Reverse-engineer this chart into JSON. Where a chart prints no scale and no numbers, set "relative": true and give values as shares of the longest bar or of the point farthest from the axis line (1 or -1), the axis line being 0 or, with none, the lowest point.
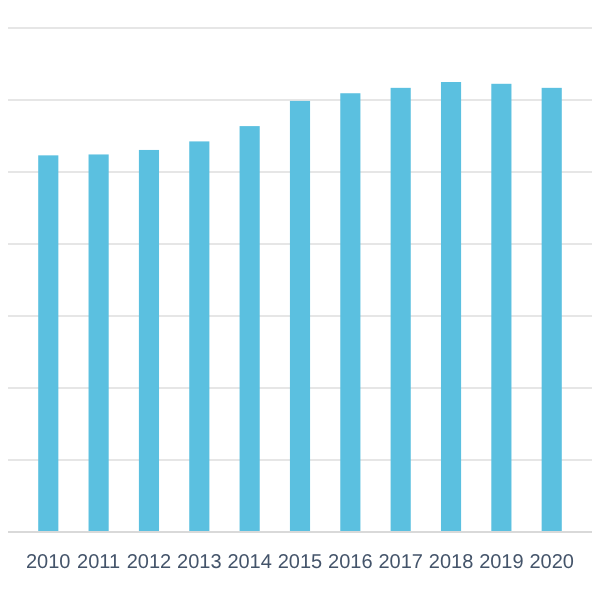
{
  "chart_data": {
    "type": "bar",
    "relative": true,
    "categories": [
      "2010",
      "2011",
      "2012",
      "2013",
      "2014",
      "2015",
      "2016",
      "2017",
      "2018",
      "2019",
      "2020"
    ],
    "values": [
      0.837,
      0.839,
      0.849,
      0.868,
      0.902,
      0.958,
      0.975,
      0.987,
      1,
      0.996,
      0.987
    ],
    "color": "#5bc0e0",
    "grid": "y"
  }
}
